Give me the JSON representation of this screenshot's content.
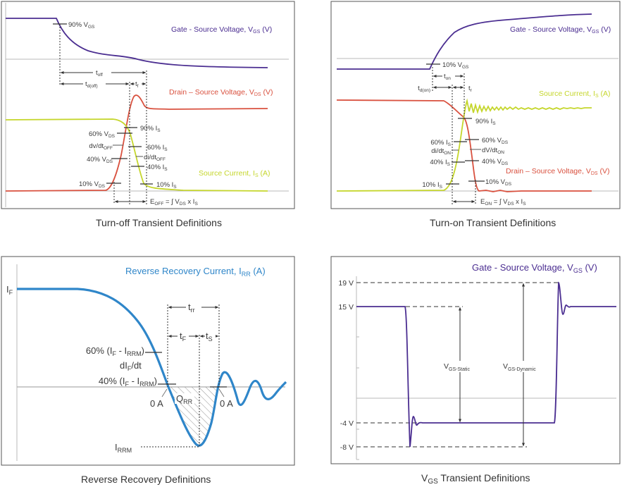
{
  "colors": {
    "vgs": "#4b2e91",
    "vds": "#d9513f",
    "is": "#c5d62c",
    "irr": "#2f86c9",
    "text": "#3a3a3a",
    "grid": "#b8b8b8"
  },
  "p1": {
    "caption": "Turn-off Transient Definitions",
    "vgs": {
      "t": "Gate - Source Voltage, V",
      "s": "GS",
      "u": " (V)"
    },
    "vds": {
      "t": "Drain – Source Voltage, V",
      "s": "DS",
      "u": " (V)"
    },
    "is": {
      "t": "Source Current, I",
      "s": "S",
      "u": " (A)"
    },
    "l": {
      "vgs90": {
        "t": "90% V",
        "s": "GS",
        "u": ""
      },
      "toff": {
        "t": "t",
        "s": "off",
        "u": ""
      },
      "tdoff": {
        "t": "t",
        "s": "d(off)",
        "u": ""
      },
      "tf": {
        "t": "t",
        "s": "f",
        "u": ""
      },
      "is90": {
        "t": "90% I",
        "s": "S",
        "u": ""
      },
      "vds60": {
        "t": "60% V",
        "s": "DS",
        "u": ""
      },
      "dvdt": {
        "t": "dv/dt",
        "s": "OFF",
        "u": ""
      },
      "is60": {
        "t": "60% I",
        "s": "S",
        "u": ""
      },
      "didt": {
        "t": "di/dt",
        "s": "OFF",
        "u": ""
      },
      "vds40": {
        "t": "40% V",
        "s": "DS",
        "u": ""
      },
      "is40": {
        "t": "40% I",
        "s": "S",
        "u": ""
      },
      "vds10": {
        "t": "10% V",
        "s": "DS",
        "u": ""
      },
      "is10": {
        "t": "10% I",
        "s": "S",
        "u": ""
      },
      "e": {
        "t": "E",
        "s": "OFF",
        "u": " = ∫  V",
        "s2": "DS",
        "u2": " x I",
        "s3": "S"
      }
    }
  },
  "p2": {
    "caption": "Turn-on Transient Definitions",
    "vgs": {
      "t": "Gate - Source Voltage, V",
      "s": "GS",
      "u": " (V)"
    },
    "is": {
      "t": "Source Current, I",
      "s": "S",
      "u": " (A)"
    },
    "vds": {
      "t": "Drain – Source Voltage, V",
      "s": "DS",
      "u": " (V)"
    },
    "l": {
      "vgs10": {
        "t": "10% V",
        "s": "GS",
        "u": ""
      },
      "ton": {
        "t": "t",
        "s": "on",
        "u": ""
      },
      "tdon": {
        "t": "t",
        "s": "d(on)",
        "u": ""
      },
      "tr": {
        "t": "t",
        "s": "r",
        "u": ""
      },
      "is90": {
        "t": "90% I",
        "s": "S",
        "u": ""
      },
      "is60": {
        "t": "60% I",
        "s": "S",
        "u": ""
      },
      "vds60": {
        "t": "60% V",
        "s": "DS",
        "u": ""
      },
      "didt": {
        "t": "di/dt",
        "s": "ON",
        "u": ""
      },
      "dvdt": {
        "t": "dV/dt",
        "s": "ON",
        "u": ""
      },
      "is40": {
        "t": "40% I",
        "s": "S",
        "u": ""
      },
      "vds40": {
        "t": "40% V",
        "s": "DS",
        "u": ""
      },
      "is10": {
        "t": "10% I",
        "s": "S",
        "u": ""
      },
      "vds10": {
        "t": "10% V",
        "s": "DS",
        "u": ""
      },
      "e": {
        "t": "E",
        "s": "ON",
        "u": " = ∫  V",
        "s2": "DS",
        "u2": " x I",
        "s3": "S"
      }
    }
  },
  "p3": {
    "caption": "Reverse Recovery Definitions",
    "irr": {
      "t": "Reverse Recovery Current, I",
      "s": "RR",
      "u": " (A)"
    },
    "l": {
      "if": {
        "t": "I",
        "s": "F",
        "u": ""
      },
      "trr": {
        "t": "t",
        "s": "rr",
        "u": ""
      },
      "tF": {
        "t": "t",
        "s": "F",
        "u": ""
      },
      "tS": {
        "t": "t",
        "s": "S",
        "u": ""
      },
      "p60": {
        "t": "60% (I",
        "s": "F",
        "u": " - I",
        "s2": "RRM",
        "u2": ")"
      },
      "difdt": {
        "t": "dI",
        "s": "F",
        "u": "/dt"
      },
      "p40": {
        "t": "40% (I",
        "s": "F",
        "u": " - I",
        "s2": "RRM",
        "u2": ")"
      },
      "zero1": "0 A",
      "zero2": "0 A",
      "qrr": {
        "t": "Q",
        "s": "RR",
        "u": ""
      },
      "irrm": {
        "t": "I",
        "s": "RRM",
        "u": ""
      }
    }
  },
  "p4": {
    "caption": {
      "t": "V",
      "s": "GS",
      "u": " Transient Definitions"
    },
    "vgs": {
      "t": "Gate - Source Voltage, V",
      "s": "GS",
      "u": " (V)"
    },
    "ticks": [
      "19 V",
      "15 V",
      "-4 V",
      "-8 V"
    ],
    "l": {
      "static": {
        "t": "V",
        "s": "GS-Static",
        "u": ""
      },
      "dynamic": {
        "t": "V",
        "s": "GS-Dynamic",
        "u": ""
      }
    }
  }
}
